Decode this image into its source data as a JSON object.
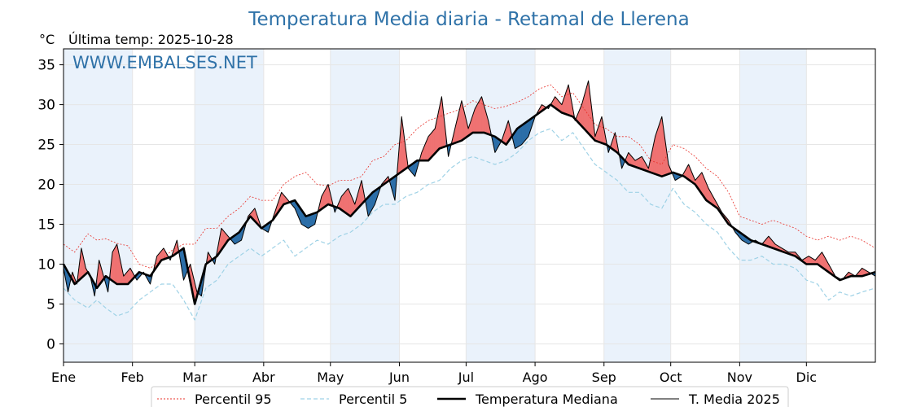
{
  "chart_data": {
    "type": "line",
    "title": "Temperatura Media diaria - Retamal de Llerena",
    "subtitle": "Última temp: 2025-10-28",
    "ylabel": "°C",
    "watermark": "WWW.EMBALSES.NET",
    "ylim": [
      -2.3,
      37
    ],
    "yticks": [
      0,
      5,
      10,
      15,
      20,
      25,
      30,
      35
    ],
    "xlim": [
      1,
      366
    ],
    "months": [
      "Ene",
      "Feb",
      "Mar",
      "Abr",
      "May",
      "Jun",
      "Jul",
      "Ago",
      "Sep",
      "Oct",
      "Nov",
      "Dic"
    ],
    "month_start_days": [
      1,
      32,
      60,
      91,
      121,
      152,
      182,
      213,
      244,
      274,
      305,
      335
    ],
    "grid": true,
    "legend_position": "bottom",
    "colors": {
      "p95": "#e8302a",
      "p5": "#9fd2e6",
      "median": "#000000",
      "actual": "#000000",
      "above": "#ef7272",
      "below": "#2c6ea8",
      "band": "#eaf2fb"
    },
    "series": [
      {
        "name": "Percentil 95",
        "style": "dotted",
        "x": [
          1,
          6,
          12,
          16,
          20,
          25,
          30,
          35,
          40,
          45,
          50,
          55,
          60,
          65,
          70,
          75,
          80,
          85,
          90,
          95,
          100,
          105,
          110,
          115,
          120,
          125,
          130,
          135,
          140,
          145,
          150,
          155,
          160,
          165,
          170,
          175,
          180,
          185,
          190,
          195,
          200,
          205,
          210,
          215,
          220,
          225,
          230,
          235,
          240,
          245,
          250,
          255,
          260,
          265,
          270,
          275,
          280,
          285,
          290,
          295,
          300,
          305,
          310,
          315,
          320,
          325,
          330,
          335,
          340,
          345,
          350,
          355,
          360,
          366
        ],
        "y": [
          12.5,
          11.5,
          13.8,
          13.0,
          13.2,
          12.6,
          12.3,
          10.0,
          9.5,
          10.5,
          11.8,
          12.5,
          12.5,
          14.5,
          14.5,
          16.0,
          17.0,
          18.5,
          18.0,
          18.0,
          20.0,
          21.0,
          21.5,
          20.0,
          19.8,
          20.5,
          20.5,
          21.0,
          23.0,
          23.5,
          25.0,
          25.5,
          27.0,
          28.0,
          28.5,
          29.0,
          29.5,
          30.5,
          30.0,
          29.5,
          29.8,
          30.3,
          31.0,
          32.0,
          32.5,
          31.0,
          31.5,
          29.5,
          27.5,
          27.0,
          26.0,
          26.0,
          25.0,
          23.0,
          22.5,
          25.0,
          24.5,
          23.5,
          22.0,
          21.0,
          19.0,
          16.0,
          15.5,
          15.0,
          15.5,
          15.0,
          14.5,
          13.5,
          13.0,
          13.5,
          13.0,
          13.5,
          13.0,
          12.0
        ]
      },
      {
        "name": "Percentil 5",
        "style": "dashed",
        "x": [
          1,
          6,
          12,
          16,
          20,
          25,
          30,
          35,
          40,
          45,
          50,
          55,
          60,
          65,
          70,
          75,
          80,
          85,
          90,
          95,
          100,
          105,
          110,
          115,
          120,
          125,
          130,
          135,
          140,
          145,
          150,
          155,
          160,
          165,
          170,
          175,
          180,
          185,
          190,
          195,
          200,
          205,
          210,
          215,
          220,
          225,
          230,
          235,
          240,
          245,
          250,
          255,
          260,
          265,
          270,
          275,
          280,
          285,
          290,
          295,
          300,
          305,
          310,
          315,
          320,
          325,
          330,
          335,
          340,
          345,
          350,
          355,
          360,
          366
        ],
        "y": [
          7.0,
          5.5,
          4.5,
          5.5,
          4.5,
          3.5,
          4.0,
          5.5,
          6.5,
          7.5,
          7.5,
          5.5,
          3.0,
          7.0,
          8.0,
          10.0,
          11.0,
          12.0,
          11.0,
          12.0,
          13.0,
          11.0,
          12.0,
          13.0,
          12.5,
          13.5,
          14.0,
          15.0,
          16.5,
          17.5,
          17.5,
          18.5,
          19.0,
          20.0,
          20.5,
          22.0,
          23.0,
          23.5,
          23.0,
          22.5,
          23.0,
          24.0,
          25.5,
          26.5,
          27.0,
          25.5,
          26.5,
          24.5,
          22.5,
          21.5,
          20.5,
          19.0,
          19.0,
          17.5,
          17.0,
          19.5,
          17.5,
          16.5,
          15.0,
          14.0,
          12.0,
          10.5,
          10.5,
          11.0,
          10.0,
          10.0,
          9.5,
          8.0,
          7.5,
          5.5,
          6.5,
          6.0,
          6.5,
          7.0
        ]
      },
      {
        "name": "Temperatura Mediana",
        "style": "solid-thick",
        "x": [
          1,
          6,
          12,
          16,
          20,
          25,
          30,
          35,
          40,
          45,
          50,
          55,
          60,
          65,
          70,
          75,
          80,
          85,
          90,
          95,
          100,
          105,
          110,
          115,
          120,
          125,
          130,
          135,
          140,
          145,
          150,
          155,
          160,
          165,
          170,
          175,
          180,
          185,
          190,
          195,
          200,
          205,
          210,
          215,
          220,
          225,
          230,
          235,
          240,
          245,
          250,
          255,
          260,
          265,
          270,
          275,
          280,
          285,
          290,
          295,
          300,
          305,
          310,
          315,
          320,
          325,
          330,
          335,
          340,
          345,
          350,
          355,
          360,
          366
        ],
        "y": [
          10.0,
          7.5,
          9.0,
          7.0,
          8.5,
          7.5,
          7.5,
          9.0,
          8.5,
          10.5,
          11.0,
          12.0,
          5.0,
          10.0,
          11.0,
          13.0,
          14.0,
          16.0,
          14.5,
          15.5,
          17.5,
          18.0,
          16.0,
          16.5,
          17.5,
          17.0,
          16.0,
          17.5,
          19.0,
          20.0,
          21.0,
          22.0,
          23.0,
          23.0,
          24.5,
          25.0,
          25.5,
          26.5,
          26.5,
          26.0,
          25.0,
          27.0,
          28.0,
          29.0,
          30.0,
          29.0,
          28.5,
          27.0,
          25.5,
          25.0,
          24.0,
          22.5,
          22.0,
          21.5,
          21.0,
          21.5,
          21.0,
          20.0,
          18.0,
          17.0,
          15.0,
          14.0,
          13.0,
          12.5,
          12.0,
          11.5,
          11.0,
          10.0,
          10.0,
          9.0,
          8.0,
          8.5,
          8.5,
          9.0
        ]
      },
      {
        "name": "T. Media 2025",
        "style": "solid-thin",
        "x": [
          1,
          3,
          5,
          7,
          9,
          11,
          13,
          15,
          17,
          19,
          21,
          23,
          25,
          28,
          31,
          34,
          37,
          40,
          43,
          46,
          49,
          52,
          55,
          58,
          61,
          63,
          66,
          69,
          72,
          75,
          78,
          81,
          84,
          87,
          90,
          93,
          96,
          99,
          102,
          105,
          108,
          111,
          114,
          117,
          120,
          123,
          126,
          129,
          132,
          135,
          138,
          141,
          144,
          147,
          150,
          153,
          156,
          159,
          162,
          165,
          168,
          171,
          174,
          177,
          180,
          183,
          186,
          189,
          192,
          195,
          198,
          201,
          204,
          207,
          210,
          213,
          216,
          219,
          222,
          225,
          228,
          231,
          234,
          237,
          240,
          243,
          246,
          249,
          252,
          255,
          258,
          261,
          264,
          267,
          270,
          273,
          276,
          279,
          282,
          285,
          288,
          291,
          294,
          297,
          300,
          303,
          306,
          309,
          312,
          315,
          318,
          321,
          324,
          327,
          330,
          333,
          336,
          339,
          342,
          345,
          348,
          351,
          354,
          357,
          360,
          363,
          366
        ],
        "y": [
          9.5,
          6.5,
          9.0,
          7.5,
          12.0,
          9.5,
          8.5,
          6.0,
          10.5,
          8.5,
          6.5,
          11.5,
          12.5,
          8.5,
          9.5,
          8.0,
          9.0,
          7.5,
          11.0,
          12.0,
          10.5,
          13.0,
          8.0,
          10.0,
          6.5,
          6.0,
          11.5,
          10.0,
          14.5,
          13.5,
          12.5,
          13.0,
          16.0,
          17.0,
          14.5,
          14.0,
          16.5,
          19.0,
          18.0,
          17.0,
          15.0,
          14.5,
          15.0,
          18.5,
          20.0,
          16.5,
          18.5,
          19.5,
          17.5,
          20.5,
          16.0,
          17.5,
          20.0,
          21.0,
          18.0,
          28.5,
          22.0,
          21.0,
          24.0,
          26.0,
          27.0,
          31.0,
          23.5,
          27.0,
          30.5,
          27.0,
          29.5,
          31.0,
          28.0,
          24.0,
          25.5,
          28.0,
          24.5,
          25.0,
          26.0,
          28.5,
          30.0,
          29.5,
          31.0,
          30.0,
          32.5,
          28.0,
          30.0,
          33.0,
          26.0,
          28.5,
          24.0,
          26.5,
          22.0,
          24.0,
          23.0,
          23.5,
          22.0,
          26.0,
          28.5,
          22.5,
          20.5,
          21.0,
          22.5,
          20.5,
          21.5,
          19.5,
          18.0,
          16.5,
          15.5,
          14.0,
          13.0,
          12.5,
          13.0,
          12.5,
          13.5,
          12.5,
          12.0,
          11.5,
          11.5,
          10.5,
          11.0,
          10.5,
          11.5,
          10.0,
          8.5,
          8.0,
          9.0,
          8.5,
          9.5,
          9.0,
          8.5
        ]
      }
    ]
  }
}
